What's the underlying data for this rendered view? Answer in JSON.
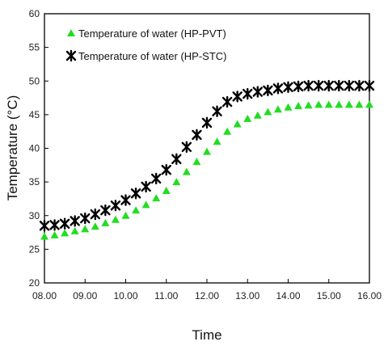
{
  "chart_data": {
    "type": "scatter",
    "xlabel": "Time",
    "ylabel": "Temperature (°C)",
    "xlim": [
      8,
      16
    ],
    "ylim": [
      20,
      60
    ],
    "xticks": [
      8,
      9,
      10,
      11,
      12,
      13,
      14,
      15,
      16
    ],
    "xtick_labels": [
      "08.00",
      "09.00",
      "10.00",
      "11.00",
      "12.00",
      "13.00",
      "14.00",
      "15.00",
      "16.00"
    ],
    "yticks": [
      20,
      25,
      30,
      35,
      40,
      45,
      50,
      55,
      60
    ],
    "ytick_labels": [
      "20",
      "25",
      "30",
      "35",
      "40",
      "45",
      "50",
      "55",
      "60"
    ],
    "legend_position": "top-left",
    "grid": false,
    "series": [
      {
        "name": "Temperature of water (HP-PVT)",
        "marker": "triangle",
        "color": "#22dd22",
        "x": [
          8.0,
          8.25,
          8.5,
          8.75,
          9.0,
          9.25,
          9.5,
          9.75,
          10.0,
          10.25,
          10.5,
          10.75,
          11.0,
          11.25,
          11.5,
          11.75,
          12.0,
          12.25,
          12.5,
          12.75,
          13.0,
          13.25,
          13.5,
          13.75,
          14.0,
          14.25,
          14.5,
          14.75,
          15.0,
          15.25,
          15.5,
          15.75,
          16.0
        ],
        "y": [
          26.9,
          27.1,
          27.4,
          27.7,
          28.0,
          28.4,
          28.9,
          29.4,
          30.0,
          30.8,
          31.6,
          32.6,
          33.7,
          35.0,
          36.5,
          38.0,
          39.5,
          41.0,
          42.5,
          43.6,
          44.4,
          44.9,
          45.4,
          45.8,
          46.1,
          46.3,
          46.4,
          46.5,
          46.5,
          46.5,
          46.5,
          46.5,
          46.5
        ]
      },
      {
        "name": "Temperature of water (HP-STC)",
        "marker": "asterisk",
        "color": "#000000",
        "x": [
          8.0,
          8.25,
          8.5,
          8.75,
          9.0,
          9.25,
          9.5,
          9.75,
          10.0,
          10.25,
          10.5,
          10.75,
          11.0,
          11.25,
          11.5,
          11.75,
          12.0,
          12.25,
          12.5,
          12.75,
          13.0,
          13.25,
          13.5,
          13.75,
          14.0,
          14.25,
          14.5,
          14.75,
          15.0,
          15.25,
          15.5,
          15.75,
          16.0
        ],
        "y": [
          28.5,
          28.6,
          28.8,
          29.2,
          29.6,
          30.2,
          30.8,
          31.5,
          32.3,
          33.3,
          34.3,
          35.5,
          36.8,
          38.4,
          40.2,
          42.0,
          43.8,
          45.5,
          46.9,
          47.7,
          48.1,
          48.4,
          48.6,
          48.9,
          49.1,
          49.2,
          49.3,
          49.3,
          49.3,
          49.3,
          49.3,
          49.3,
          49.3
        ]
      }
    ]
  }
}
